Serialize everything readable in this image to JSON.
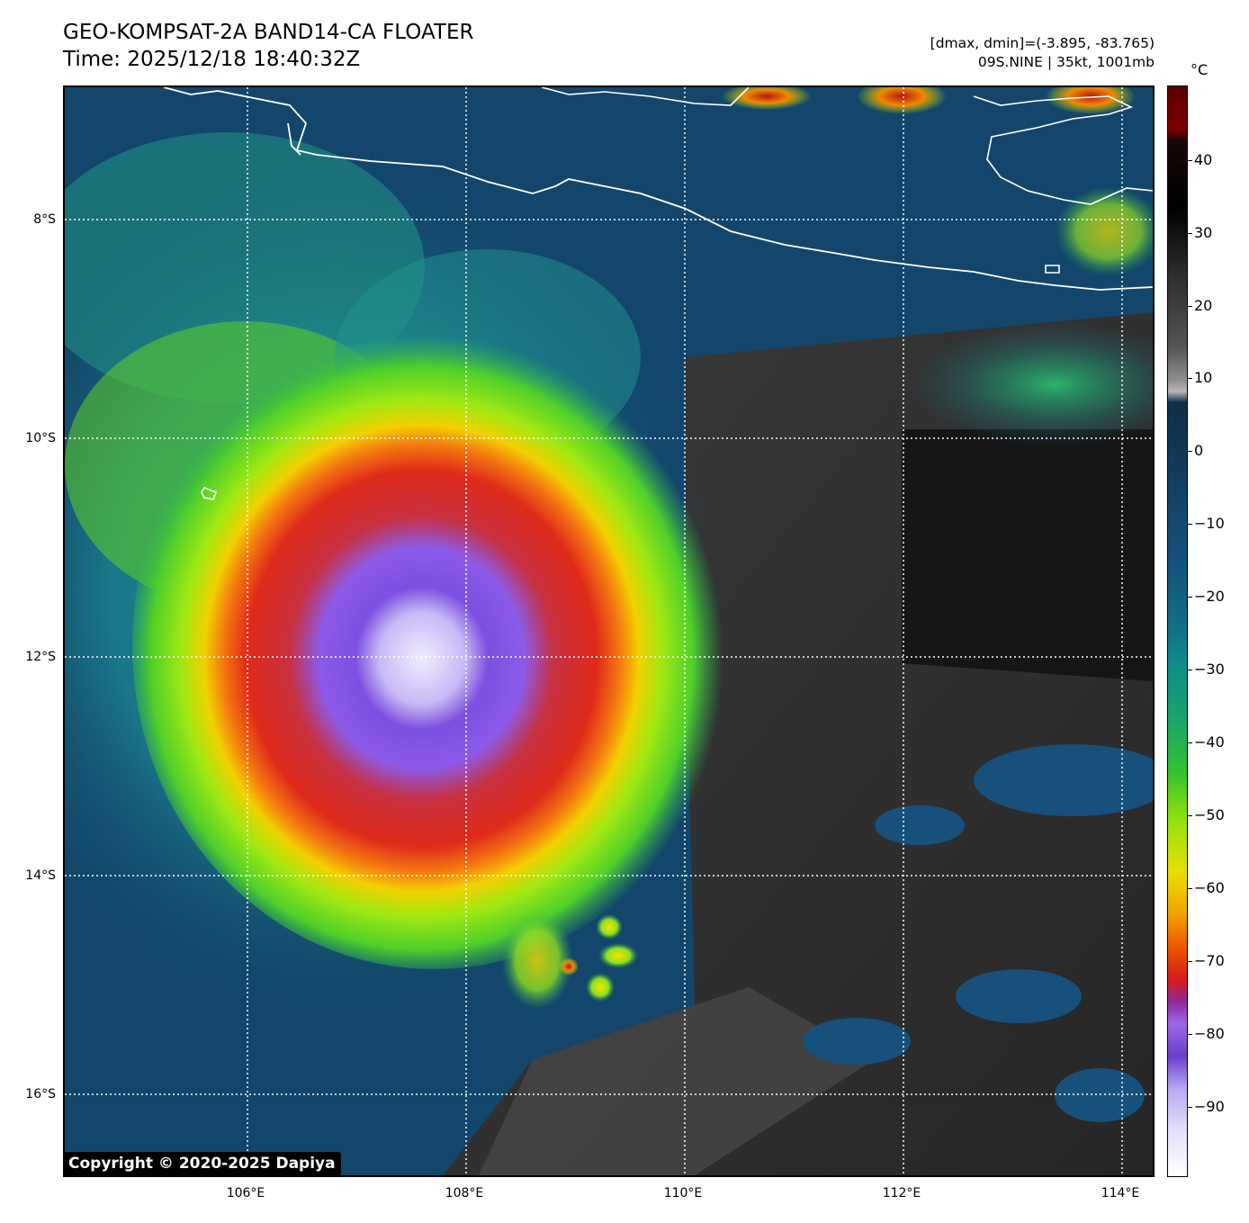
{
  "header": {
    "title_line1": "GEO-KOMPSAT-2A BAND14-CA FLOATER",
    "title_line2": "Time: 2025/12/18 18:40:32Z",
    "info_line1": "[dmax, dmin]=(-3.895, -83.765)",
    "info_line2": "09S.NINE | 35kt, 1001mb"
  },
  "map": {
    "lat_labels": [
      "8°S",
      "10°S",
      "12°S",
      "14°S",
      "16°S"
    ],
    "lon_labels": [
      "106°E",
      "108°E",
      "110°E",
      "112°E",
      "114°E"
    ],
    "coastline_color": "#ffffff",
    "gridline_color": "#ffffff"
  },
  "colorbar": {
    "unit": "°C",
    "tick_labels": [
      "40",
      "30",
      "20",
      "10",
      "0",
      "−10",
      "−20",
      "−30",
      "−40",
      "−50",
      "−60",
      "−70",
      "−80",
      "−90"
    ],
    "range": [
      -100,
      50
    ]
  },
  "copyright": "Copyright © 2020-2025 Dapiya"
}
